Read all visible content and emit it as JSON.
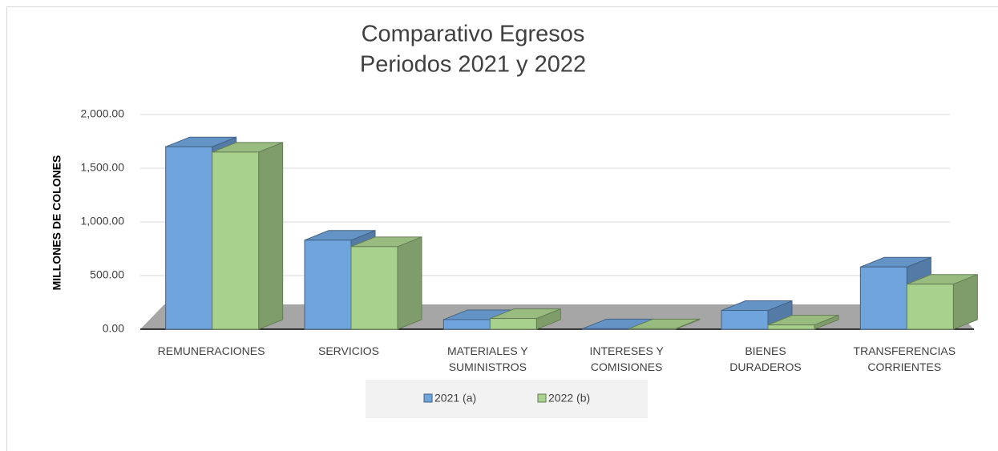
{
  "chart_data": {
    "type": "bar3d",
    "title": "Comparativo Egresos",
    "subtitle": "Periodos 2021 y 2022",
    "y_label": "MILLONES DE COLONES",
    "categories": [
      "REMUNERACIONES",
      "SERVICIOS",
      "MATERIALES Y SUMINISTROS",
      "INTERESES Y COMISIONES",
      "BIENES DURADEROS",
      "TRANSFERENCIAS CORRIENTES"
    ],
    "series": [
      {
        "name": "2021 (a)",
        "color": "#6fa4dc",
        "values": [
          1700,
          830,
          90,
          5,
          175,
          580
        ]
      },
      {
        "name": "2022 (b)",
        "color": "#a9d18e",
        "values": [
          1650,
          770,
          100,
          5,
          40,
          420
        ]
      }
    ],
    "ylim": [
      0,
      2000
    ],
    "yticks": [
      {
        "value": 0,
        "label": "0.00"
      },
      {
        "value": 500,
        "label": "500.00"
      },
      {
        "value": 1000,
        "label": "1,000.00"
      },
      {
        "value": 1500,
        "label": "1,500.00"
      },
      {
        "value": 2000,
        "label": "2,000.00"
      }
    ],
    "grid": true,
    "legend": "bottom"
  }
}
